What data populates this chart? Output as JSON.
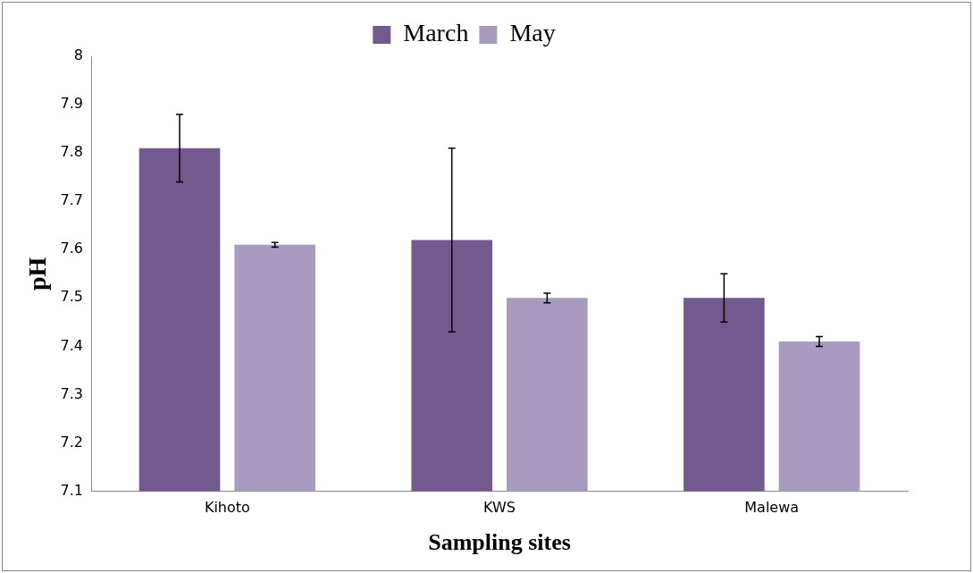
{
  "chart_data": {
    "type": "bar",
    "xlabel": "Sampling sites",
    "ylabel": "pH",
    "categories": [
      "Kihoto",
      "KWS",
      "Malewa"
    ],
    "series": [
      {
        "name": "March",
        "color": "#725a8f",
        "values": [
          7.81,
          7.62,
          7.5
        ],
        "errors": [
          0.07,
          0.19,
          0.05
        ]
      },
      {
        "name": "May",
        "color": "#a99bbf",
        "values": [
          7.61,
          7.5,
          7.41
        ],
        "errors": [
          0.005,
          0.01,
          0.01
        ]
      }
    ],
    "ylim": [
      7.1,
      8
    ],
    "yticks": [
      7.1,
      7.2,
      7.3,
      7.4,
      7.5,
      7.6,
      7.7,
      7.8,
      7.9,
      8
    ],
    "grid": false,
    "legend": "top"
  }
}
